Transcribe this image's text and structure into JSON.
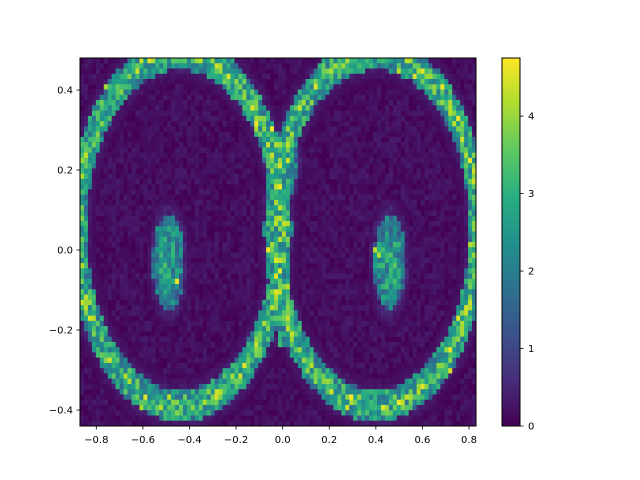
{
  "chart_data": {
    "type": "heatmap",
    "title": "",
    "xlabel": "",
    "ylabel": "",
    "xlim": [
      -0.87,
      0.83
    ],
    "ylim": [
      -0.44,
      0.48
    ],
    "x_ticks": [
      -0.8,
      -0.6,
      -0.4,
      -0.2,
      0.0,
      0.2,
      0.4,
      0.6,
      0.8
    ],
    "x_tick_labels": [
      "−0.8",
      "−0.6",
      "−0.4",
      "−0.2",
      "0.0",
      "0.2",
      "0.4",
      "0.6",
      "0.8"
    ],
    "y_ticks": [
      -0.4,
      -0.2,
      0.0,
      0.2,
      0.4
    ],
    "y_tick_labels": [
      "−0.4",
      "−0.2",
      "0.0",
      "0.2",
      "0.4"
    ],
    "grid": false,
    "colormap": "viridis",
    "colorbar": {
      "range": [
        0,
        4.75
      ],
      "ticks": [
        0,
        1,
        2,
        3,
        4
      ],
      "tick_labels": [
        "0",
        "1",
        "2",
        "3",
        "4"
      ]
    },
    "bins": {
      "nx": 100,
      "ny": 70
    },
    "structures": [
      {
        "name": "left-outer-arc",
        "kind": "ring",
        "center": [
          -0.44,
          0.05
        ],
        "radii": [
          0.4,
          0.48
        ],
        "y_max": 0.48,
        "peak": 3.4
      },
      {
        "name": "right-outer-arc",
        "kind": "ring",
        "center": [
          0.4,
          0.05
        ],
        "radii": [
          0.4,
          0.48
        ],
        "y_max": 0.48,
        "peak": 3.4
      },
      {
        "name": "left-blob",
        "kind": "ellipse",
        "center": [
          -0.49,
          -0.03
        ],
        "radii": [
          0.07,
          0.12
        ],
        "peak": 2.6
      },
      {
        "name": "right-blob",
        "kind": "ellipse",
        "center": [
          0.46,
          -0.03
        ],
        "radii": [
          0.07,
          0.12
        ],
        "peak": 2.6
      },
      {
        "name": "central-stem",
        "kind": "vertical-band",
        "x": 0.0,
        "y_range": [
          -0.24,
          0.18
        ],
        "peak": 2.9
      },
      {
        "name": "central-top",
        "kind": "ellipse",
        "center": [
          0.0,
          0.22
        ],
        "radii": [
          0.07,
          0.08
        ],
        "peak": 2.4
      }
    ]
  }
}
